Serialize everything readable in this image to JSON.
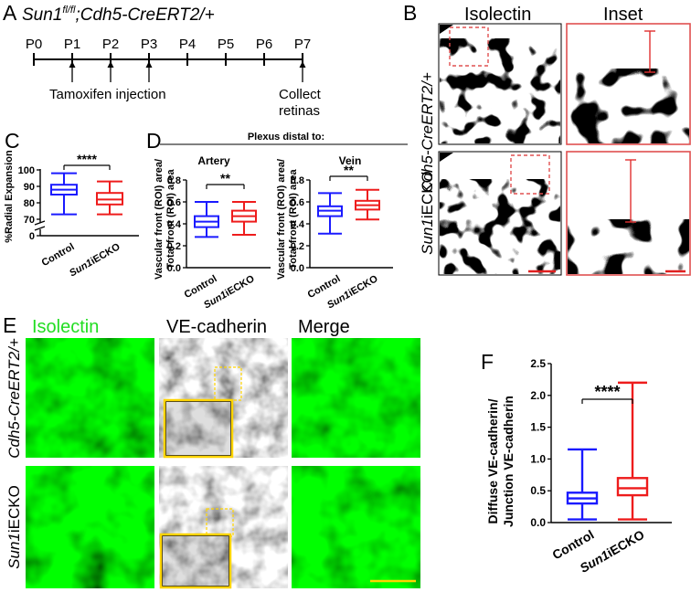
{
  "panel_letters": [
    "A",
    "B",
    "C",
    "D",
    "E",
    "F"
  ],
  "panel_a": {
    "title_gene": "Sun1",
    "title_sup": "fl/fl",
    "title_rest": ";Cdh5-CreERT2/+",
    "days": [
      "P0",
      "P1",
      "P2",
      "P3",
      "P4",
      "P5",
      "P6",
      "P7"
    ],
    "injection_label": "Tamoxifen injection",
    "collect_label_1": "Collect",
    "collect_label_2": "retinas"
  },
  "panel_b": {
    "col_isolectin": "Isolectin",
    "col_inset": "Inset",
    "row_control": "Cdh5-CreERT2/+",
    "row_ko_italic": "Sun1",
    "row_ko_rest": "iECKO"
  },
  "panel_c": {
    "ylabel": "%Radial Expansion",
    "yticks": [
      "100",
      "90",
      "80",
      "70",
      "0"
    ],
    "significance": "****",
    "categories": [
      "Control",
      "Sun1iECKO"
    ]
  },
  "panel_d": {
    "header": "Plexus distal to:",
    "artery_title": "Artery",
    "vein_title": "Vein",
    "ylabel_1": "Vascular front (ROI) area/",
    "ylabel_2": "Total front (ROI) area",
    "yticks": [
      "0.8",
      "0.6",
      "0.4",
      "0.2",
      "0.0"
    ],
    "sig_artery": "**",
    "sig_vein": "**",
    "categories": [
      "Control",
      "Sun1iECKO"
    ]
  },
  "panel_e": {
    "col_isolectin": "Isolectin",
    "col_vecad": "VE-cadherin",
    "col_merge": "Merge",
    "row_control": "Cdh5-CreERT2/+",
    "row_ko_italic": "Sun1",
    "row_ko_rest": "iECKO"
  },
  "panel_f": {
    "ylabel_1": "Diffuse VE-cadherin/",
    "ylabel_2": "Junction VE-cadherin",
    "yticks": [
      "2.5",
      "2.0",
      "1.5",
      "1.0",
      "0.5",
      "0.0"
    ],
    "significance": "****",
    "categories": [
      "Control",
      "Sun1iECKO"
    ]
  },
  "colors": {
    "control": "#1a1aff",
    "ko": "#ee1c1c",
    "isolectin": "#22dd22",
    "inset_box": "#ffd400",
    "red_box": "#e05050"
  },
  "chart_data": [
    {
      "type": "box",
      "panel": "C",
      "ylabel": "%Radial Expansion",
      "ylim": [
        70,
        100
      ],
      "axis_break_below": 70,
      "categories": [
        "Control",
        "Sun1iECKO"
      ],
      "series": [
        {
          "name": "Control",
          "whisker_low": 73,
          "q1": 85,
          "median": 88,
          "q3": 91,
          "whisker_high": 98
        },
        {
          "name": "Sun1iECKO",
          "whisker_low": 73,
          "q1": 79,
          "median": 82,
          "q3": 86,
          "whisker_high": 93
        }
      ],
      "significance": "****"
    },
    {
      "type": "box",
      "panel": "D-Artery",
      "ylim": [
        0,
        0.8
      ],
      "categories": [
        "Control",
        "Sun1iECKO"
      ],
      "series": [
        {
          "name": "Control",
          "whisker_low": 0.28,
          "q1": 0.37,
          "median": 0.42,
          "q3": 0.47,
          "whisker_high": 0.6
        },
        {
          "name": "Sun1iECKO",
          "whisker_low": 0.3,
          "q1": 0.42,
          "median": 0.47,
          "q3": 0.52,
          "whisker_high": 0.6
        }
      ],
      "significance": "**"
    },
    {
      "type": "box",
      "panel": "D-Vein",
      "ylim": [
        0,
        0.8
      ],
      "categories": [
        "Control",
        "Sun1iECKO"
      ],
      "series": [
        {
          "name": "Control",
          "whisker_low": 0.31,
          "q1": 0.47,
          "median": 0.52,
          "q3": 0.56,
          "whisker_high": 0.68
        },
        {
          "name": "Sun1iECKO",
          "whisker_low": 0.44,
          "q1": 0.53,
          "median": 0.57,
          "q3": 0.61,
          "whisker_high": 0.71
        }
      ],
      "significance": "**"
    },
    {
      "type": "box",
      "panel": "F",
      "ylim": [
        0,
        2.5
      ],
      "categories": [
        "Control",
        "Sun1iECKO"
      ],
      "series": [
        {
          "name": "Control",
          "whisker_low": 0.05,
          "q1": 0.3,
          "median": 0.38,
          "q3": 0.47,
          "whisker_high": 1.15
        },
        {
          "name": "Sun1iECKO",
          "whisker_low": 0.05,
          "q1": 0.43,
          "median": 0.54,
          "q3": 0.7,
          "whisker_high": 2.2
        }
      ],
      "significance": "****"
    }
  ]
}
